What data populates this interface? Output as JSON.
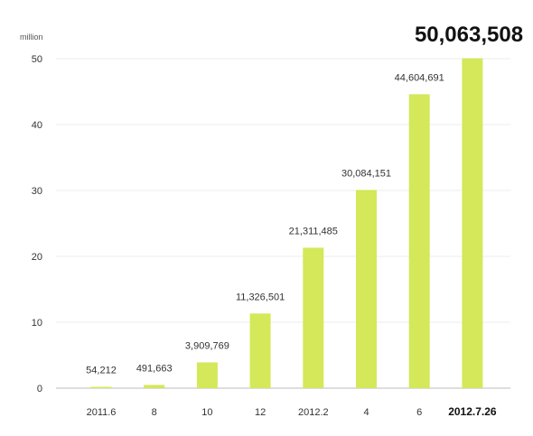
{
  "chart_data": {
    "type": "bar",
    "y_unit": "million",
    "ylim": [
      0,
      50
    ],
    "yticks": [
      "0",
      "10",
      "20",
      "30",
      "40",
      "50"
    ],
    "grid": true,
    "categories": [
      "2011.6",
      "8",
      "10",
      "12",
      "2012.2",
      "4",
      "6",
      "2012.7.26"
    ],
    "values": [
      54212,
      491663,
      3909769,
      11326501,
      21311485,
      30084151,
      44604691,
      50063508
    ],
    "data_labels": [
      "54,212",
      "491,663",
      "3,909,769",
      "11,326,501",
      "21,311,485",
      "30,084,151",
      "44,604,691",
      "50,063,508"
    ],
    "highlight_index": 7,
    "bar_color": "#d4e85a"
  }
}
